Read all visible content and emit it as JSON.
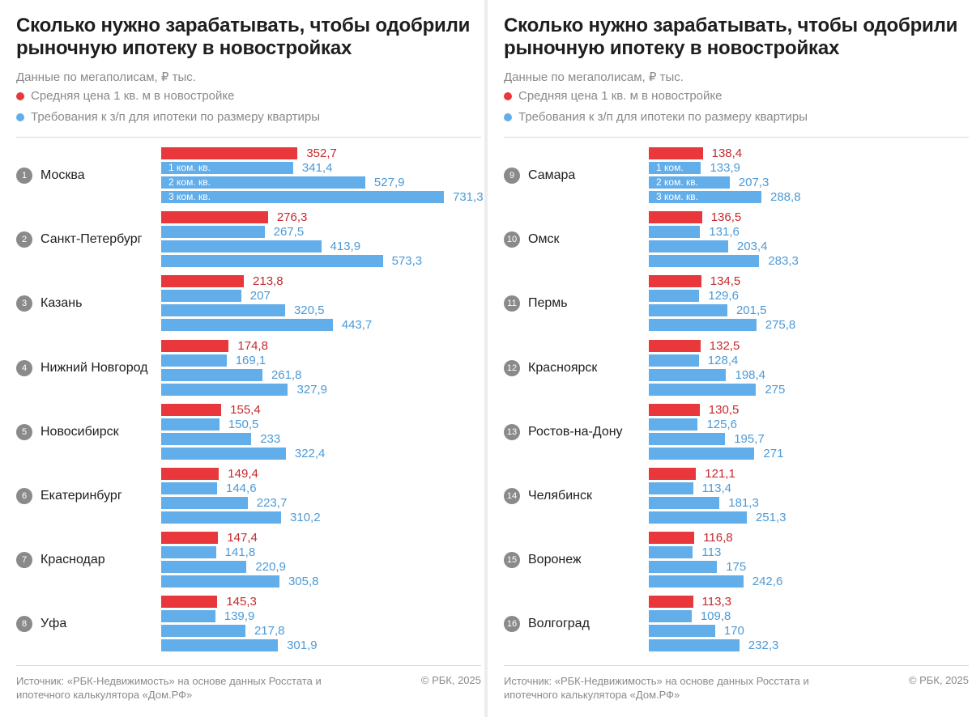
{
  "chart_data": [
    {
      "type": "bar",
      "orientation": "horizontal",
      "title": "Сколько нужно зарабатывать, чтобы одобрили рыночную ипотеку в новостройках",
      "subtitle": "Данные по мегаполисам, ₽ тыс.",
      "legend": [
        "Средняя цена 1 кв. м в новостройке",
        "Требования к з/п для ипотеки по размеру квартиры"
      ],
      "bar_labels": [
        "1 ком. кв.",
        "2 ком. кв.",
        "3 ком. кв."
      ],
      "source": "Источник: «РБК-Недвижимость» на основе данных Росстата и ипотечного калькулятора «Дом.РФ»",
      "copyright": "© РБК, 2025",
      "cities": [
        {
          "rank": "1",
          "name": "Москва",
          "price": "352,7",
          "sal": [
            "341,4",
            "527,9",
            "731,3"
          ]
        },
        {
          "rank": "2",
          "name": "Санкт-Петербург",
          "price": "276,3",
          "sal": [
            "267,5",
            "413,9",
            "573,3"
          ]
        },
        {
          "rank": "3",
          "name": "Казань",
          "price": "213,8",
          "sal": [
            "207",
            "320,5",
            "443,7"
          ]
        },
        {
          "rank": "4",
          "name": "Нижний Новгород",
          "price": "174,8",
          "sal": [
            "169,1",
            "261,8",
            "327,9"
          ]
        },
        {
          "rank": "5",
          "name": "Новосибирск",
          "price": "155,4",
          "sal": [
            "150,5",
            "233",
            "322,4"
          ]
        },
        {
          "rank": "6",
          "name": "Екатеринбург",
          "price": "149,4",
          "sal": [
            "144,6",
            "223,7",
            "310,2"
          ]
        },
        {
          "rank": "7",
          "name": "Краснодар",
          "price": "147,4",
          "sal": [
            "141,8",
            "220,9",
            "305,8"
          ]
        },
        {
          "rank": "8",
          "name": "Уфа",
          "price": "145,3",
          "sal": [
            "139,9",
            "217,8",
            "301,9"
          ]
        }
      ]
    },
    {
      "type": "bar",
      "orientation": "horizontal",
      "title": "Сколько нужно зарабатывать, чтобы одобрили рыночную ипотеку в новостройках",
      "subtitle": "Данные по мегаполисам, ₽ тыс.",
      "legend": [
        "Средняя цена 1 кв. м в новостройке",
        "Требования к з/п для ипотеки по размеру квартиры"
      ],
      "bar_labels": [
        "1 ком.",
        "2 ком. кв.",
        "3 ком. кв."
      ],
      "source": "Источник: «РБК-Недвижимость» на основе данных Росстата и ипотечного калькулятора «Дом.РФ»",
      "copyright": "© РБК, 2025",
      "cities": [
        {
          "rank": "9",
          "name": "Самара",
          "price": "138,4",
          "sal": [
            "133,9",
            "207,3",
            "288,8"
          ]
        },
        {
          "rank": "10",
          "name": "Омск",
          "price": "136,5",
          "sal": [
            "131,6",
            "203,4",
            "283,3"
          ]
        },
        {
          "rank": "11",
          "name": "Пермь",
          "price": "134,5",
          "sal": [
            "129,6",
            "201,5",
            "275,8"
          ]
        },
        {
          "rank": "12",
          "name": "Красноярск",
          "price": "132,5",
          "sal": [
            "128,4",
            "198,4",
            "275"
          ]
        },
        {
          "rank": "13",
          "name": "Ростов-на-Дону",
          "price": "130,5",
          "sal": [
            "125,6",
            "195,7",
            "271"
          ]
        },
        {
          "rank": "14",
          "name": "Челябинск",
          "price": "121,1",
          "sal": [
            "113,4",
            "181,3",
            "251,3"
          ]
        },
        {
          "rank": "15",
          "name": "Воронеж",
          "price": "116,8",
          "sal": [
            "113",
            "175",
            "242,6"
          ]
        },
        {
          "rank": "16",
          "name": "Волгоград",
          "price": "113,3",
          "sal": [
            "109,8",
            "170",
            "232,3"
          ]
        }
      ]
    }
  ],
  "colors": {
    "price": "#e8383b",
    "salary": "#62aeeb"
  }
}
